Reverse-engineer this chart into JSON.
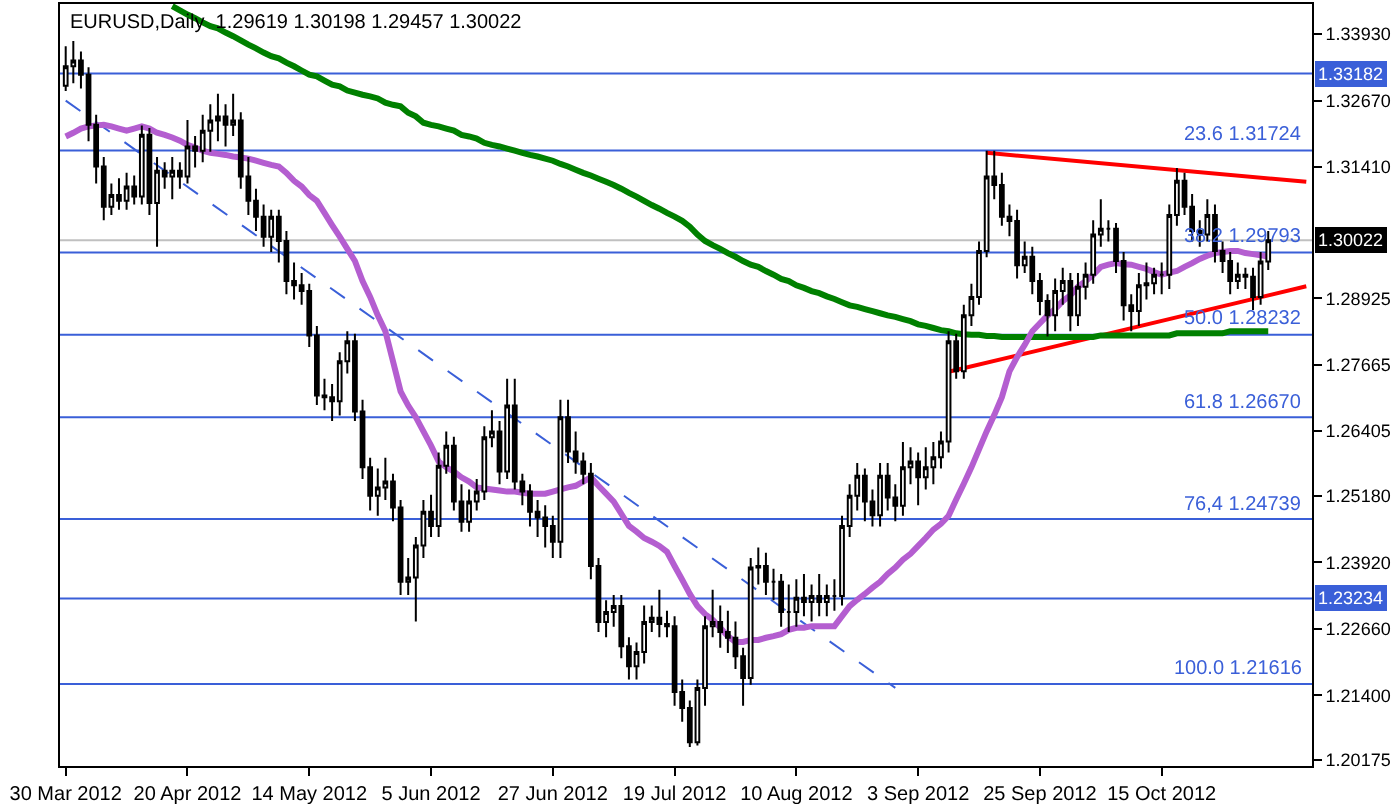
{
  "chart_data": {
    "type": "candlestick",
    "title": "EURUSD,Daily  1.29619 1.30198 1.29457 1.30022",
    "categories": [
      "30 Mar 2012",
      null,
      null,
      null,
      null,
      null,
      null,
      null,
      null,
      null,
      null,
      null,
      null,
      null,
      null,
      null,
      "20 Apr 2012",
      null,
      null,
      null,
      null,
      null,
      null,
      null,
      null,
      null,
      null,
      null,
      null,
      null,
      null,
      null,
      "14 May 2012",
      null,
      null,
      null,
      null,
      null,
      null,
      null,
      null,
      null,
      null,
      null,
      null,
      null,
      null,
      null,
      "5 Jun 2012",
      null,
      null,
      null,
      null,
      null,
      null,
      null,
      null,
      null,
      null,
      null,
      null,
      null,
      null,
      null,
      "27 Jun 2012",
      null,
      null,
      null,
      null,
      null,
      null,
      null,
      null,
      null,
      null,
      null,
      null,
      null,
      null,
      null,
      "19 Jul 2012",
      null,
      null,
      null,
      null,
      null,
      null,
      null,
      null,
      null,
      null,
      null,
      null,
      null,
      null,
      null,
      "10 Aug 2012",
      null,
      null,
      null,
      null,
      null,
      null,
      null,
      null,
      null,
      null,
      null,
      null,
      null,
      null,
      null,
      "3 Sep 2012",
      null,
      null,
      null,
      null,
      null,
      null,
      null,
      null,
      null,
      null,
      null,
      null,
      null,
      null,
      null,
      "25 Sep 2012",
      null,
      null,
      null,
      null,
      null,
      null,
      null,
      null,
      null,
      null,
      null,
      null,
      null,
      null,
      null,
      "15 Oct 2012",
      null,
      null,
      null,
      null,
      null,
      null,
      null,
      null,
      null,
      null,
      null,
      null,
      null,
      null,
      null,
      null,
      null,
      null,
      null
    ],
    "ohlc": [
      [
        1.3295,
        1.337,
        1.3285,
        1.3332
      ],
      [
        1.3332,
        1.338,
        1.33,
        1.3343
      ],
      [
        1.3343,
        1.336,
        1.329,
        1.3316
      ],
      [
        1.3316,
        1.333,
        1.319,
        1.3221
      ],
      [
        1.3221,
        1.324,
        1.311,
        1.3142
      ],
      [
        1.3142,
        1.316,
        1.304,
        1.3066
      ],
      [
        1.3066,
        1.311,
        1.305,
        1.3088
      ],
      [
        1.3088,
        1.312,
        1.306,
        1.3077
      ],
      [
        1.3077,
        1.313,
        1.306,
        1.3104
      ],
      [
        1.3104,
        1.3125,
        1.307,
        1.3085
      ],
      [
        1.3085,
        1.322,
        1.307,
        1.3202
      ],
      [
        1.3202,
        1.3215,
        1.305,
        1.3073
      ],
      [
        1.3073,
        1.316,
        1.299,
        1.3134
      ],
      [
        1.3134,
        1.315,
        1.31,
        1.3123
      ],
      [
        1.3123,
        1.316,
        1.308,
        1.3134
      ],
      [
        1.3134,
        1.315,
        1.31,
        1.3123
      ],
      [
        1.3123,
        1.323,
        1.311,
        1.318
      ],
      [
        1.318,
        1.32,
        1.314,
        1.3172
      ],
      [
        1.3172,
        1.324,
        1.315,
        1.321
      ],
      [
        1.321,
        1.326,
        1.317,
        1.3229
      ],
      [
        1.3229,
        1.328,
        1.319,
        1.3237
      ],
      [
        1.3237,
        1.326,
        1.318,
        1.3221
      ],
      [
        1.3221,
        1.328,
        1.32,
        1.3229
      ],
      [
        1.3229,
        1.3245,
        1.31,
        1.3123
      ],
      [
        1.3123,
        1.316,
        1.305,
        1.3077
      ],
      [
        1.3077,
        1.31,
        1.302,
        1.3047
      ],
      [
        1.3047,
        1.307,
        1.299,
        1.3009
      ],
      [
        1.3009,
        1.306,
        1.298,
        1.3047
      ],
      [
        1.3047,
        1.306,
        1.296,
        1.3001
      ],
      [
        1.3001,
        1.302,
        1.29,
        1.2925
      ],
      [
        1.2925,
        1.296,
        1.289,
        1.2917
      ],
      [
        1.2917,
        1.294,
        1.288,
        1.2906
      ],
      [
        1.2906,
        1.292,
        1.28,
        1.2822
      ],
      [
        1.2822,
        1.284,
        1.269,
        1.2708
      ],
      [
        1.2708,
        1.274,
        1.268,
        1.2705
      ],
      [
        1.2705,
        1.273,
        1.266,
        1.2697
      ],
      [
        1.2697,
        1.279,
        1.267,
        1.2773
      ],
      [
        1.2773,
        1.283,
        1.275,
        1.2811
      ],
      [
        1.2811,
        1.2825,
        1.266,
        1.2678
      ],
      [
        1.2678,
        1.27,
        1.255,
        1.2572
      ],
      [
        1.2572,
        1.259,
        1.249,
        1.2518
      ],
      [
        1.2518,
        1.257,
        1.248,
        1.2534
      ],
      [
        1.2534,
        1.259,
        1.251,
        1.2545
      ],
      [
        1.2545,
        1.256,
        1.247,
        1.2496
      ],
      [
        1.2496,
        1.251,
        1.233,
        1.2355
      ],
      [
        1.2355,
        1.24,
        1.233,
        1.2363
      ],
      [
        1.2363,
        1.244,
        1.228,
        1.2424
      ],
      [
        1.2424,
        1.251,
        1.24,
        1.2488
      ],
      [
        1.2488,
        1.252,
        1.244,
        1.2461
      ],
      [
        1.2461,
        1.26,
        1.244,
        1.2575
      ],
      [
        1.2575,
        1.264,
        1.256,
        1.2613
      ],
      [
        1.2613,
        1.263,
        1.249,
        1.2507
      ],
      [
        1.2507,
        1.254,
        1.245,
        1.2469
      ],
      [
        1.2469,
        1.253,
        1.245,
        1.2507
      ],
      [
        1.2507,
        1.255,
        1.249,
        1.2526
      ],
      [
        1.2526,
        1.265,
        1.251,
        1.2629
      ],
      [
        1.2629,
        1.268,
        1.261,
        1.264
      ],
      [
        1.264,
        1.266,
        1.254,
        1.2564
      ],
      [
        1.2564,
        1.274,
        1.255,
        1.2689
      ],
      [
        1.2689,
        1.274,
        1.253,
        1.2545
      ],
      [
        1.2545,
        1.256,
        1.25,
        1.2526
      ],
      [
        1.2526,
        1.254,
        1.246,
        1.2488
      ],
      [
        1.2488,
        1.251,
        1.244,
        1.2477
      ],
      [
        1.2477,
        1.25,
        1.242,
        1.2461
      ],
      [
        1.2461,
        1.248,
        1.24,
        1.2431
      ],
      [
        1.2431,
        1.27,
        1.24,
        1.2667
      ],
      [
        1.2667,
        1.27,
        1.258,
        1.2602
      ],
      [
        1.2602,
        1.264,
        1.256,
        1.2583
      ],
      [
        1.2583,
        1.26,
        1.254,
        1.256
      ],
      [
        1.256,
        1.258,
        1.236,
        1.2385
      ],
      [
        1.2385,
        1.24,
        1.226,
        1.2279
      ],
      [
        1.2279,
        1.232,
        1.225,
        1.2298
      ],
      [
        1.2298,
        1.233,
        1.227,
        1.2309
      ],
      [
        1.2309,
        1.233,
        1.221,
        1.2233
      ],
      [
        1.2233,
        1.225,
        1.217,
        1.2195
      ],
      [
        1.2195,
        1.224,
        1.217,
        1.2222
      ],
      [
        1.2222,
        1.231,
        1.22,
        1.2279
      ],
      [
        1.2279,
        1.231,
        1.226,
        1.2287
      ],
      [
        1.2287,
        1.234,
        1.225,
        1.2275
      ],
      [
        1.2275,
        1.23,
        1.225,
        1.2271
      ],
      [
        1.2271,
        1.229,
        1.212,
        1.2146
      ],
      [
        1.2146,
        1.217,
        1.209,
        1.2116
      ],
      [
        1.2116,
        1.213,
        1.2042,
        1.2051
      ],
      [
        1.2051,
        1.217,
        1.2045,
        1.2154
      ],
      [
        1.2154,
        1.229,
        1.212,
        1.2271
      ],
      [
        1.2271,
        1.234,
        1.225,
        1.2279
      ],
      [
        1.2279,
        1.231,
        1.223,
        1.226
      ],
      [
        1.226,
        1.23,
        1.222,
        1.2249
      ],
      [
        1.2249,
        1.228,
        1.219,
        1.2214
      ],
      [
        1.2214,
        1.223,
        1.212,
        1.2173
      ],
      [
        1.2173,
        1.24,
        1.216,
        1.2382
      ],
      [
        1.2382,
        1.242,
        1.235,
        1.2385
      ],
      [
        1.2385,
        1.241,
        1.233,
        1.2355
      ],
      [
        1.2355,
        1.238,
        1.232,
        1.2355
      ],
      [
        1.2355,
        1.237,
        1.227,
        1.2298
      ],
      [
        1.2298,
        1.235,
        1.226,
        1.2298
      ],
      [
        1.2298,
        1.236,
        1.227,
        1.2325
      ],
      [
        1.2325,
        1.237,
        1.229,
        1.2317
      ],
      [
        1.2317,
        1.235,
        1.228,
        1.2328
      ],
      [
        1.2328,
        1.237,
        1.229,
        1.2317
      ],
      [
        1.2317,
        1.235,
        1.229,
        1.2328
      ],
      [
        1.2328,
        1.236,
        1.23,
        1.2328
      ],
      [
        1.2328,
        1.248,
        1.231,
        1.2461
      ],
      [
        1.2461,
        1.254,
        1.244,
        1.2518
      ],
      [
        1.2518,
        1.258,
        1.249,
        1.2556
      ],
      [
        1.2556,
        1.257,
        1.247,
        1.2507
      ],
      [
        1.2507,
        1.253,
        1.246,
        1.2481
      ],
      [
        1.2481,
        1.258,
        1.246,
        1.2556
      ],
      [
        1.2556,
        1.258,
        1.249,
        1.2515
      ],
      [
        1.2515,
        1.254,
        1.247,
        1.2499
      ],
      [
        1.2499,
        1.262,
        1.248,
        1.2572
      ],
      [
        1.2572,
        1.261,
        1.254,
        1.2583
      ],
      [
        1.2583,
        1.26,
        1.25,
        1.2553
      ],
      [
        1.2553,
        1.261,
        1.253,
        1.2572
      ],
      [
        1.2572,
        1.262,
        1.254,
        1.2591
      ],
      [
        1.2591,
        1.264,
        1.257,
        1.2621
      ],
      [
        1.2621,
        1.283,
        1.26,
        1.2811
      ],
      [
        1.2811,
        1.2825,
        1.274,
        1.2754
      ],
      [
        1.2754,
        1.288,
        1.274,
        1.286
      ],
      [
        1.286,
        1.292,
        1.284,
        1.2895
      ],
      [
        1.2895,
        1.3,
        1.288,
        1.2982
      ],
      [
        1.2982,
        1.3172,
        1.297,
        1.3123
      ],
      [
        1.3123,
        1.3172,
        1.308,
        1.3107
      ],
      [
        1.3107,
        1.313,
        1.303,
        1.3047
      ],
      [
        1.3047,
        1.307,
        1.301,
        1.3039
      ],
      [
        1.3039,
        1.306,
        1.293,
        1.2955
      ],
      [
        1.2955,
        1.3,
        1.294,
        1.2971
      ],
      [
        1.2971,
        1.299,
        1.29,
        1.2925
      ],
      [
        1.2925,
        1.294,
        1.286,
        1.2887
      ],
      [
        1.2887,
        1.29,
        1.282,
        1.286
      ],
      [
        1.286,
        1.293,
        1.283,
        1.2906
      ],
      [
        1.2906,
        1.295,
        1.288,
        1.2925
      ],
      [
        1.2925,
        1.294,
        1.283,
        1.286
      ],
      [
        1.286,
        1.294,
        1.284,
        1.2914
      ],
      [
        1.2914,
        1.296,
        1.289,
        1.2937
      ],
      [
        1.2937,
        1.304,
        1.292,
        1.3013
      ],
      [
        1.3013,
        1.308,
        1.299,
        1.3024
      ],
      [
        1.3024,
        1.304,
        1.3,
        1.3024
      ],
      [
        1.3024,
        1.3035,
        1.294,
        1.2963
      ],
      [
        1.2963,
        1.298,
        1.285,
        1.2879
      ],
      [
        1.2879,
        1.29,
        1.283,
        1.2868
      ],
      [
        1.2868,
        1.294,
        1.284,
        1.2917
      ],
      [
        1.2917,
        1.296,
        1.289,
        1.2921
      ],
      [
        1.2921,
        1.295,
        1.29,
        1.2937
      ],
      [
        1.2937,
        1.296,
        1.29,
        1.2937
      ],
      [
        1.2937,
        1.307,
        1.291,
        1.305
      ],
      [
        1.305,
        1.3139,
        1.303,
        1.3115
      ],
      [
        1.3115,
        1.313,
        1.305,
        1.3066
      ],
      [
        1.3066,
        1.309,
        1.3,
        1.302
      ],
      [
        1.302,
        1.304,
        1.299,
        1.3013
      ],
      [
        1.3013,
        1.308,
        1.3,
        1.305
      ],
      [
        1.305,
        1.307,
        1.296,
        1.2982
      ],
      [
        1.2982,
        1.3,
        1.294,
        1.2963
      ],
      [
        1.2963,
        1.298,
        1.29,
        1.2925
      ],
      [
        1.2925,
        1.296,
        1.291,
        1.2937
      ],
      [
        1.2937,
        1.295,
        1.291,
        1.2933
      ],
      [
        1.2933,
        1.295,
        1.287,
        1.2895
      ],
      [
        1.2895,
        1.298,
        1.288,
        1.2962
      ],
      [
        1.29619,
        1.30198,
        1.29457,
        1.30022
      ],
      null,
      null,
      null,
      null,
      null
    ],
    "series": [
      {
        "type": "line",
        "color": "#b45ed0",
        "values": [
          1.3199,
          1.3206,
          1.3214,
          1.3218,
          1.322,
          1.3221,
          1.3218,
          1.3214,
          1.321,
          1.3214,
          1.3218,
          1.3214,
          1.3206,
          1.3202,
          1.3197,
          1.3191,
          1.3183,
          1.3178,
          1.3172,
          1.3168,
          1.3166,
          1.3164,
          1.3161,
          1.3159,
          1.3157,
          1.3153,
          1.3149,
          1.3145,
          1.3142,
          1.313,
          1.3115,
          1.3104,
          1.3088,
          1.3077,
          1.3054,
          1.3031,
          1.3009,
          1.2986,
          1.2963,
          1.2925,
          1.2895,
          1.286,
          1.283,
          1.2773,
          1.2716,
          1.2689,
          1.2667,
          1.264,
          1.2613,
          1.2583,
          1.2572,
          1.2564,
          1.2553,
          1.2545,
          1.2534,
          1.2532,
          1.253,
          1.2528,
          1.2526,
          1.2526,
          1.2524,
          1.2522,
          1.2522,
          1.2522,
          1.2526,
          1.253,
          1.2534,
          1.2537,
          1.2545,
          1.2553,
          1.2537,
          1.2522,
          1.2507,
          1.2484,
          1.2461,
          1.245,
          1.2438,
          1.2431,
          1.2423,
          1.2412,
          1.2385,
          1.2359,
          1.2332,
          1.2309,
          1.2294,
          1.2283,
          1.2268,
          1.2252,
          1.2241,
          1.2241,
          1.2245,
          1.2245,
          1.2249,
          1.2252,
          1.2256,
          1.2264,
          1.2268,
          1.2268,
          1.2271,
          1.2271,
          1.2271,
          1.2271,
          1.229,
          1.2309,
          1.2321,
          1.2332,
          1.2344,
          1.2355,
          1.237,
          1.2382,
          1.2397,
          1.2408,
          1.2423,
          1.2438,
          1.2454,
          1.2465,
          1.248,
          1.2511,
          1.2541,
          1.2572,
          1.2606,
          1.264,
          1.2671,
          1.2705,
          1.2754,
          1.2781,
          1.2804,
          1.283,
          1.2845,
          1.286,
          1.2872,
          1.2887,
          1.2898,
          1.2914,
          1.2925,
          1.2937,
          1.2952,
          1.2956,
          1.2959,
          1.2957,
          1.2956,
          1.2952,
          1.2948,
          1.2942,
          1.2937,
          1.2941,
          1.2944,
          1.2952,
          1.2959,
          1.2967,
          1.2973,
          1.2978,
          1.298,
          1.2982,
          1.2982,
          1.2978,
          1.2976,
          1.2974,
          1.2971,
          null,
          null,
          null,
          null,
          null
        ]
      },
      {
        "type": "line",
        "color": "#008000",
        "values": [
          null,
          null,
          null,
          null,
          null,
          null,
          null,
          null,
          null,
          null,
          null,
          null,
          null,
          null,
          1.3446,
          1.3438,
          1.343,
          1.3423,
          1.3415,
          1.3408,
          1.3404,
          1.3396,
          1.3389,
          1.3381,
          1.3373,
          1.3366,
          1.3358,
          1.3351,
          1.3347,
          1.3339,
          1.3332,
          1.3324,
          1.3316,
          1.3313,
          1.3305,
          1.3297,
          1.3294,
          1.3286,
          1.3282,
          1.3278,
          1.3275,
          1.3271,
          1.3263,
          1.3259,
          1.3256,
          1.3244,
          1.3237,
          1.3225,
          1.3221,
          1.3218,
          1.3214,
          1.321,
          1.3202,
          1.3199,
          1.3195,
          1.3187,
          1.3183,
          1.318,
          1.3176,
          1.3172,
          1.3168,
          1.3164,
          1.3161,
          1.3157,
          1.3153,
          1.3147,
          1.3142,
          1.3136,
          1.313,
          1.3125,
          1.3119,
          1.3113,
          1.3107,
          1.31,
          1.3092,
          1.3085,
          1.3077,
          1.3069,
          1.3062,
          1.3054,
          1.3047,
          1.3039,
          1.3028,
          1.3013,
          1.3001,
          1.2993,
          1.2986,
          1.2978,
          1.2971,
          1.2963,
          1.2956,
          1.2952,
          1.2944,
          1.2937,
          1.2929,
          1.2925,
          1.2917,
          1.2912,
          1.2906,
          1.2902,
          1.2896,
          1.2891,
          1.2885,
          1.2879,
          1.2876,
          1.2872,
          1.2868,
          1.2864,
          1.286,
          1.2857,
          1.2853,
          1.2849,
          1.2843,
          1.284,
          1.2836,
          1.2832,
          1.283,
          1.2826,
          1.2824,
          1.2823,
          1.2823,
          1.2821,
          1.2821,
          1.2819,
          1.2819,
          1.2819,
          1.2819,
          1.2819,
          1.2819,
          1.2819,
          1.2819,
          1.2819,
          1.2819,
          1.2819,
          1.2819,
          1.2819,
          1.2822,
          1.2822,
          1.2822,
          1.2822,
          1.2822,
          1.2822,
          1.2822,
          1.2822,
          1.2822,
          1.2822,
          1.2826,
          1.2826,
          1.2826,
          1.2826,
          1.2826,
          1.2826,
          1.2826,
          1.283,
          1.283,
          1.283,
          1.283,
          1.283,
          1.283,
          null,
          null,
          null,
          null,
          null
        ]
      },
      {
        "type": "line",
        "color": "#ff0000",
        "values": [
          null,
          null,
          null,
          null,
          null,
          null,
          null,
          null,
          null,
          null,
          null,
          null,
          null,
          null,
          null,
          null,
          null,
          null,
          null,
          null,
          null,
          null,
          null,
          null,
          null,
          null,
          null,
          null,
          null,
          null,
          null,
          null,
          null,
          null,
          null,
          null,
          null,
          null,
          null,
          null,
          null,
          null,
          null,
          null,
          null,
          null,
          null,
          null,
          null,
          null,
          null,
          null,
          null,
          null,
          null,
          null,
          null,
          null,
          null,
          null,
          null,
          null,
          null,
          null,
          null,
          null,
          null,
          null,
          null,
          null,
          null,
          null,
          null,
          null,
          null,
          null,
          null,
          null,
          null,
          null,
          null,
          null,
          null,
          null,
          null,
          null,
          null,
          null,
          null,
          null,
          null,
          null,
          null,
          null,
          null,
          null,
          null,
          null,
          null,
          null,
          null,
          null,
          null,
          null,
          null,
          null,
          null,
          null,
          null,
          null,
          null,
          null,
          null,
          null,
          null,
          null,
          null,
          null,
          null,
          null,
          null,
          1.3168,
          null,
          null,
          null,
          null,
          null,
          null,
          null,
          null,
          null,
          null,
          null,
          null,
          null,
          null,
          null,
          null,
          null,
          null,
          null,
          null,
          null,
          null,
          null,
          null,
          null,
          null,
          null,
          null,
          null,
          null,
          null,
          null,
          null,
          null,
          null,
          null,
          null,
          null,
          null,
          null,
          null,
          1.3113
        ]
      },
      {
        "type": "line",
        "color": "#ff0000",
        "values": [
          null,
          null,
          null,
          null,
          null,
          null,
          null,
          null,
          null,
          null,
          null,
          null,
          null,
          null,
          null,
          null,
          null,
          null,
          null,
          null,
          null,
          null,
          null,
          null,
          null,
          null,
          null,
          null,
          null,
          null,
          null,
          null,
          null,
          null,
          null,
          null,
          null,
          null,
          null,
          null,
          null,
          null,
          null,
          null,
          null,
          null,
          null,
          null,
          null,
          null,
          null,
          null,
          null,
          null,
          null,
          null,
          null,
          null,
          null,
          null,
          null,
          null,
          null,
          null,
          null,
          null,
          null,
          null,
          null,
          null,
          null,
          null,
          null,
          null,
          null,
          null,
          null,
          null,
          null,
          null,
          null,
          null,
          null,
          null,
          null,
          null,
          null,
          null,
          null,
          null,
          null,
          null,
          null,
          null,
          null,
          null,
          null,
          null,
          null,
          null,
          null,
          null,
          null,
          null,
          null,
          null,
          null,
          null,
          null,
          null,
          null,
          null,
          null,
          null,
          null,
          null,
          1.2753,
          null,
          null,
          null,
          null,
          null,
          null,
          null,
          null,
          null,
          null,
          null,
          null,
          null,
          null,
          null,
          null,
          null,
          null,
          null,
          null,
          null,
          null,
          null,
          null,
          null,
          null,
          null,
          null,
          null,
          null,
          null,
          null,
          null,
          null,
          null,
          null,
          null,
          null,
          null,
          null,
          null,
          null,
          null,
          null,
          null,
          null,
          1.2915
        ]
      },
      {
        "type": "line",
        "color": "#3a5fd8",
        "line_style": "dashed",
        "values": [
          1.3267,
          null,
          null,
          null,
          null,
          null,
          null,
          null,
          null,
          null,
          null,
          null,
          null,
          null,
          null,
          null,
          null,
          null,
          null,
          null,
          null,
          null,
          null,
          null,
          null,
          null,
          null,
          null,
          null,
          null,
          null,
          null,
          null,
          null,
          null,
          null,
          null,
          null,
          null,
          null,
          null,
          null,
          null,
          null,
          null,
          null,
          null,
          null,
          null,
          null,
          null,
          null,
          null,
          null,
          null,
          null,
          null,
          null,
          null,
          null,
          null,
          null,
          null,
          null,
          null,
          null,
          null,
          null,
          null,
          null,
          null,
          null,
          null,
          null,
          null,
          null,
          null,
          null,
          null,
          null,
          null,
          null,
          null,
          null,
          null,
          null,
          null,
          null,
          null,
          null,
          null,
          null,
          null,
          null,
          null,
          null,
          null,
          null,
          null,
          null,
          null,
          null,
          null,
          null,
          null,
          null,
          null,
          null,
          null,
          1.2154,
          null,
          null,
          null,
          null,
          null,
          null,
          null,
          null,
          null,
          null,
          null,
          null,
          null,
          null,
          null,
          null,
          null,
          null,
          null,
          null,
          null,
          null,
          null,
          null,
          null,
          null,
          null,
          null,
          null,
          null,
          null,
          null,
          null,
          null,
          null,
          null,
          null,
          null,
          null,
          null,
          null,
          null,
          null,
          null,
          null,
          null,
          null,
          null,
          null,
          null,
          null,
          null,
          null,
          null
        ]
      }
    ],
    "ref_lines": [
      {
        "axis": "y",
        "value": 1.33182,
        "label": "1.33182",
        "color": "#3a5fd8"
      },
      {
        "axis": "y",
        "value": 1.31724,
        "label": "23.6 1.31724",
        "color": "#3a5fd8"
      },
      {
        "axis": "y",
        "value": 1.30022,
        "label": "1.30022",
        "color": "#c0c0c0"
      },
      {
        "axis": "y",
        "value": 1.29793,
        "label": "38.2 1.29793",
        "color": "#3a5fd8"
      },
      {
        "axis": "y",
        "value": 1.28232,
        "label": "50.0 1.28232",
        "color": "#3a5fd8"
      },
      {
        "axis": "y",
        "value": 1.2667,
        "label": "61.8 1.26670",
        "color": "#3a5fd8"
      },
      {
        "axis": "y",
        "value": 1.24739,
        "label": "76,4 1.24739",
        "color": "#3a5fd8"
      },
      {
        "axis": "y",
        "value": 1.23234,
        "label": "1.23234",
        "color": "#3a5fd8"
      },
      {
        "axis": "y",
        "value": 1.21616,
        "label": "100.0 1.21616",
        "color": "#3a5fd8"
      }
    ],
    "ylim": [
      1.2006,
      1.345
    ],
    "yticks": [
      {
        "value": 1.3393,
        "label": "1.33930"
      },
      {
        "value": 1.3267,
        "label": "1.32670"
      },
      {
        "value": 1.3141,
        "label": "1.31410"
      },
      {
        "value": 1.28925,
        "label": "1.28925"
      },
      {
        "value": 1.27665,
        "label": "1.27665"
      },
      {
        "value": 1.26405,
        "label": "1.26405"
      },
      {
        "value": 1.2518,
        "label": "1.25180"
      },
      {
        "value": 1.2392,
        "label": "1.23920"
      },
      {
        "value": 1.2266,
        "label": "1.22660"
      },
      {
        "value": 1.214,
        "label": "1.21400"
      },
      {
        "value": 1.20175,
        "label": "1.20175"
      }
    ]
  }
}
